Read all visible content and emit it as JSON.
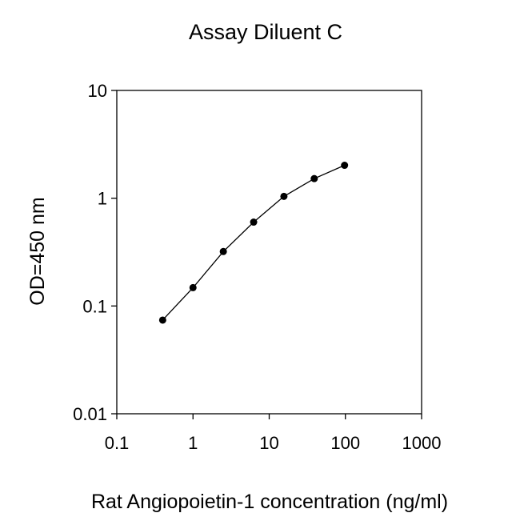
{
  "chart_data": {
    "type": "line",
    "title": "Assay Diluent C",
    "xlabel": "Rat Angiopoietin-1 concentration (ng/ml)",
    "ylabel": "OD=450 nm",
    "x_scale": "log",
    "y_scale": "log",
    "xlim": [
      0.1,
      1000
    ],
    "ylim": [
      0.01,
      10
    ],
    "x_ticks": [
      {
        "value": 0.1,
        "label": "0.1"
      },
      {
        "value": 1,
        "label": "1"
      },
      {
        "value": 10,
        "label": "10"
      },
      {
        "value": 100,
        "label": "100"
      },
      {
        "value": 1000,
        "label": "1000"
      }
    ],
    "y_ticks": [
      {
        "value": 0.01,
        "label": "0.01"
      },
      {
        "value": 0.1,
        "label": "0.1"
      },
      {
        "value": 1,
        "label": "1"
      },
      {
        "value": 10,
        "label": "10"
      }
    ],
    "grid": false,
    "legend": "none",
    "series": [
      {
        "color": "#000000",
        "marker": "circle",
        "x": [
          0.4,
          1.0,
          2.5,
          6.25,
          15.6,
          39.0,
          97.5
        ],
        "y": [
          0.074,
          0.148,
          0.32,
          0.6,
          1.04,
          1.52,
          2.02
        ]
      }
    ]
  }
}
